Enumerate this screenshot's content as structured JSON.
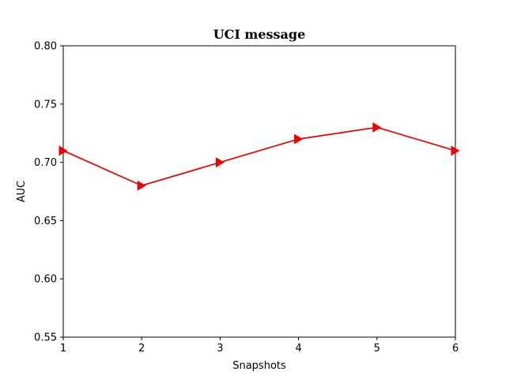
{
  "chart_data": {
    "type": "line",
    "title": "UCI message",
    "xlabel": "Snapshots",
    "ylabel": "AUC",
    "x": [
      1,
      2,
      3,
      4,
      5,
      6
    ],
    "xticks": [
      "1",
      "2",
      "3",
      "4",
      "5",
      "6"
    ],
    "yticks": [
      "0.55",
      "0.60",
      "0.65",
      "0.70",
      "0.75",
      "0.80"
    ],
    "xlim": [
      1,
      6
    ],
    "ylim": [
      0.55,
      0.8
    ],
    "grid": false,
    "series": [
      {
        "values": [
          0.71,
          0.68,
          0.7,
          0.72,
          0.73,
          0.71
        ],
        "color": "#ee0000",
        "marker": "triangle-right"
      }
    ]
  }
}
